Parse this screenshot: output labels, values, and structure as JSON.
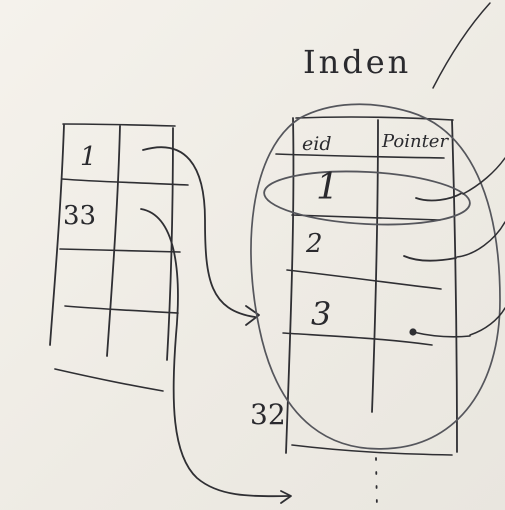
{
  "whiteboard": {
    "index_heading": "Inden",
    "index_table": {
      "column_headers": [
        "eid",
        "Pointer"
      ],
      "rows": [
        "1",
        "2",
        "3"
      ]
    },
    "base_table": {
      "rows": [
        "1",
        "33"
      ]
    },
    "stray_label": "32"
  }
}
